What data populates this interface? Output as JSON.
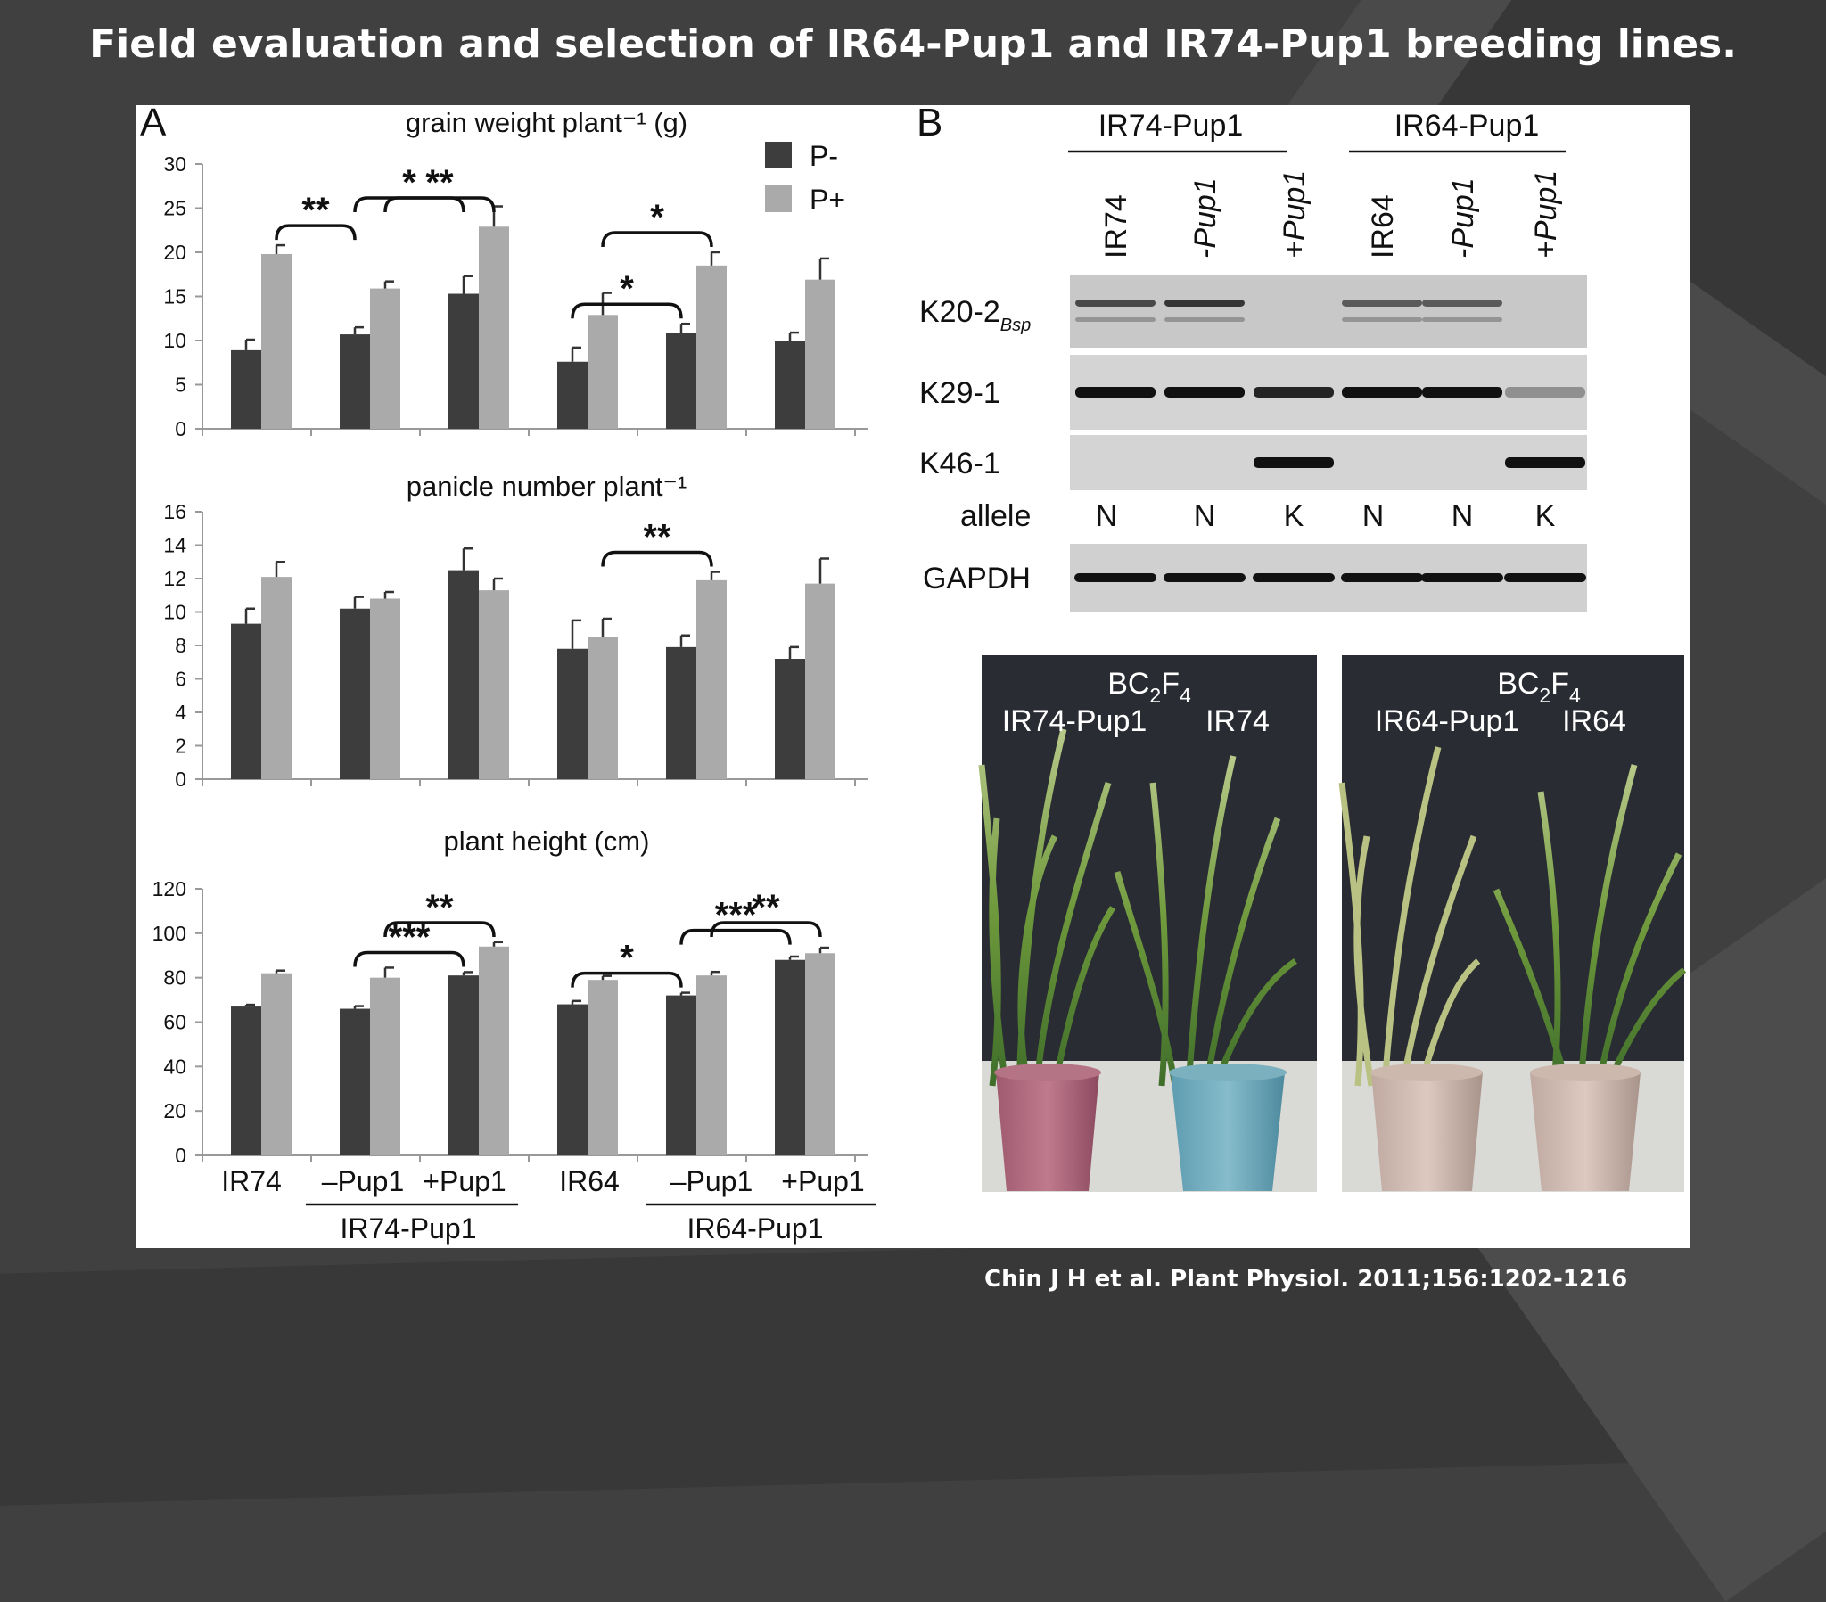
{
  "title": "Field evaluation and selection of IR64-Pup1 and IR74-Pup1 breeding lines.",
  "citation": "Chin J H et al. Plant Physiol. 2011;156:1202-1216",
  "colors": {
    "P-": "#3d3d3d",
    "P+": "#aaaaaa",
    "background": "#404040"
  },
  "panel_a_label": "A",
  "panel_b_label": "B",
  "legend": [
    "P-",
    "P+"
  ],
  "categories": [
    "IR74",
    "–Pup1",
    "+Pup1",
    "IR64",
    "–Pup1",
    "+Pup1"
  ],
  "group_labels": [
    "IR74-Pup1",
    "IR64-Pup1"
  ],
  "chart_data": [
    {
      "type": "bar",
      "title": "grain weight plant⁻¹ (g)",
      "categories": [
        "IR74",
        "–Pup1",
        "+Pup1",
        "IR64",
        "–Pup1",
        "+Pup1"
      ],
      "ylim": [
        0,
        30
      ],
      "yticks": [
        "0",
        "5",
        "10",
        "15",
        "20",
        "25",
        "30"
      ],
      "series": [
        {
          "name": "P-",
          "values": [
            8.9,
            10.7,
            15.3,
            7.6,
            10.9,
            10.0
          ],
          "errors": [
            1.2,
            0.8,
            2.0,
            1.6,
            1.0,
            0.9
          ]
        },
        {
          "name": "P+",
          "values": [
            19.8,
            15.9,
            22.9,
            12.9,
            18.5,
            16.9
          ],
          "errors": [
            1.0,
            0.8,
            2.3,
            2.5,
            1.5,
            2.4
          ]
        }
      ],
      "annotations": [
        {
          "label": "**",
          "from": [
            0,
            1
          ],
          "to": [
            1,
            0
          ]
        },
        {
          "label": "**",
          "from": [
            1,
            1
          ],
          "to": [
            2,
            1
          ]
        },
        {
          "label": "*",
          "from": [
            1,
            0
          ],
          "to": [
            2,
            0
          ]
        },
        {
          "label": "*",
          "from": [
            3,
            0
          ],
          "to": [
            4,
            0
          ]
        },
        {
          "label": "*",
          "from": [
            3,
            1
          ],
          "to": [
            4,
            1
          ]
        }
      ]
    },
    {
      "type": "bar",
      "title": "panicle number plant⁻¹",
      "categories": [
        "IR74",
        "–Pup1",
        "+Pup1",
        "IR64",
        "–Pup1",
        "+Pup1"
      ],
      "ylim": [
        0,
        16
      ],
      "yticks": [
        "0",
        "2",
        "4",
        "6",
        "8",
        "10",
        "12",
        "14",
        "16"
      ],
      "series": [
        {
          "name": "P-",
          "values": [
            9.3,
            10.2,
            12.5,
            7.8,
            7.9,
            7.2
          ],
          "errors": [
            0.9,
            0.7,
            1.3,
            1.7,
            0.7,
            0.7
          ]
        },
        {
          "name": "P+",
          "values": [
            12.1,
            10.8,
            11.3,
            8.5,
            11.9,
            11.7
          ],
          "errors": [
            0.9,
            0.4,
            0.7,
            1.1,
            0.5,
            1.5
          ]
        }
      ],
      "annotations": [
        {
          "label": "**",
          "from": [
            3,
            1
          ],
          "to": [
            4,
            1
          ]
        }
      ]
    },
    {
      "type": "bar",
      "title": "plant height (cm)",
      "categories": [
        "IR74",
        "–Pup1",
        "+Pup1",
        "IR64",
        "–Pup1",
        "+Pup1"
      ],
      "ylim": [
        0,
        120
      ],
      "yticks": [
        "0",
        "20",
        "40",
        "60",
        "80",
        "100",
        "120"
      ],
      "series": [
        {
          "name": "P-",
          "values": [
            67,
            66,
            81,
            68,
            72,
            88
          ],
          "errors": [
            0.8,
            1.2,
            1.5,
            1.5,
            1.2,
            1.5
          ]
        },
        {
          "name": "P+",
          "values": [
            82,
            80,
            94,
            79,
            81,
            91
          ],
          "errors": [
            1.2,
            4.5,
            2.0,
            1.8,
            1.6,
            2.5
          ]
        }
      ],
      "annotations": [
        {
          "label": "***",
          "from": [
            1,
            0
          ],
          "to": [
            2,
            0
          ]
        },
        {
          "label": "**",
          "from": [
            1,
            1
          ],
          "to": [
            2,
            1
          ]
        },
        {
          "label": "*",
          "from": [
            3,
            0
          ],
          "to": [
            4,
            0
          ]
        },
        {
          "label": "***",
          "from": [
            4,
            0
          ],
          "to": [
            5,
            0
          ]
        },
        {
          "label": "**",
          "from": [
            4,
            1
          ],
          "to": [
            5,
            1
          ]
        }
      ]
    }
  ],
  "panel_b": {
    "groups": [
      "IR74-Pup1",
      "IR64-Pup1"
    ],
    "lanes": [
      "IR74",
      "-Pup1",
      "+Pup1",
      "IR64",
      "-Pup1",
      "+Pup1"
    ],
    "markers": [
      {
        "name": "K20-2",
        "subscript": "Bsp",
        "bands": [
          0.7,
          0.8,
          0,
          0.6,
          0.6,
          0
        ],
        "thick": false
      },
      {
        "name": "K29-1",
        "bands": [
          1,
          1,
          0.9,
          1,
          1,
          0.35
        ],
        "thick": true
      },
      {
        "name": "K46-1",
        "bands": [
          0,
          0,
          1,
          0,
          0,
          1
        ],
        "thick": true
      }
    ],
    "allele_label": "allele",
    "alleles": [
      "N",
      "N",
      "K",
      "N",
      "N",
      "K"
    ],
    "control": {
      "name": "GAPDH",
      "bands": [
        1,
        1,
        1,
        1,
        1,
        1
      ]
    },
    "photos": [
      {
        "generation": "BC",
        "sub1": "2",
        "gen_letter": "F",
        "sub2": "4",
        "left_label": "IR74-Pup1",
        "right_label": "IR74"
      },
      {
        "generation": "BC",
        "sub1": "2",
        "gen_letter": "F",
        "sub2": "4",
        "left_label": "IR64-Pup1",
        "right_label": "IR64"
      }
    ]
  }
}
